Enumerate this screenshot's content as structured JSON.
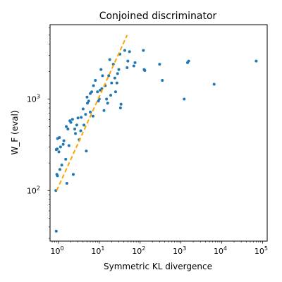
{
  "chart_data": {
    "type": "scatter",
    "title": "Conjoined discriminator",
    "xlabel": "Symmetric KL divergence",
    "ylabel": "W_F (eval)",
    "xscale": "log",
    "yscale": "log",
    "xlim": [
      0.62,
      130000
    ],
    "ylim": [
      28,
      6500
    ],
    "grid": false,
    "x_ticks": [
      {
        "value": 1,
        "base": "10",
        "exp": "0"
      },
      {
        "value": 10,
        "base": "10",
        "exp": "1"
      },
      {
        "value": 100,
        "base": "10",
        "exp": "2"
      },
      {
        "value": 1000,
        "base": "10",
        "exp": "3"
      },
      {
        "value": 10000,
        "base": "10",
        "exp": "4"
      },
      {
        "value": 100000,
        "base": "10",
        "exp": "5"
      }
    ],
    "y_ticks": [
      {
        "value": 100,
        "base": "10",
        "exp": "2"
      },
      {
        "value": 1000,
        "base": "10",
        "exp": "3"
      }
    ],
    "point_color": "#1f77b4",
    "points": [
      [
        0.86,
        100
      ],
      [
        0.88,
        36
      ],
      [
        0.91,
        150
      ],
      [
        0.94,
        145
      ],
      [
        0.88,
        280
      ],
      [
        0.93,
        285
      ],
      [
        0.95,
        370
      ],
      [
        1.02,
        265
      ],
      [
        1.05,
        380
      ],
      [
        1.08,
        170
      ],
      [
        1.12,
        300
      ],
      [
        1.2,
        190
      ],
      [
        1.3,
        320
      ],
      [
        1.35,
        350
      ],
      [
        1.5,
        220
      ],
      [
        1.55,
        500
      ],
      [
        1.6,
        120
      ],
      [
        1.7,
        470
      ],
      [
        1.8,
        310
      ],
      [
        1.9,
        580
      ],
      [
        2.0,
        555
      ],
      [
        2.2,
        600
      ],
      [
        2.3,
        150
      ],
      [
        2.5,
        470
      ],
      [
        2.6,
        420
      ],
      [
        2.8,
        520
      ],
      [
        3.0,
        620
      ],
      [
        3.2,
        360
      ],
      [
        3.5,
        450
      ],
      [
        3.6,
        630
      ],
      [
        4.0,
        780
      ],
      [
        4.2,
        520
      ],
      [
        4.6,
        680
      ],
      [
        4.8,
        270
      ],
      [
        5.0,
        1050
      ],
      [
        5.1,
        900
      ],
      [
        5.5,
        950
      ],
      [
        6.0,
        1150
      ],
      [
        6.0,
        720
      ],
      [
        6.5,
        1200
      ],
      [
        7.0,
        650
      ],
      [
        7.2,
        1400
      ],
      [
        8.0,
        1600
      ],
      [
        9.0,
        1200
      ],
      [
        9.5,
        950
      ],
      [
        10,
        1000
      ],
      [
        10.5,
        1250
      ],
      [
        11,
        2100
      ],
      [
        11.5,
        1300
      ],
      [
        12,
        1800
      ],
      [
        13,
        750
      ],
      [
        14,
        1400
      ],
      [
        15,
        1000
      ],
      [
        16,
        900
      ],
      [
        17,
        1800
      ],
      [
        18,
        2700
      ],
      [
        19,
        1100
      ],
      [
        20,
        1500
      ],
      [
        22,
        2400
      ],
      [
        24,
        1700
      ],
      [
        25,
        1200
      ],
      [
        27,
        1500
      ],
      [
        28,
        1900
      ],
      [
        30,
        2100
      ],
      [
        32,
        3100
      ],
      [
        33,
        800
      ],
      [
        34,
        880
      ],
      [
        42,
        3400
      ],
      [
        48,
        2200
      ],
      [
        50,
        2600
      ],
      [
        55,
        3300
      ],
      [
        70,
        2300
      ],
      [
        75,
        2500
      ],
      [
        120,
        3400
      ],
      [
        125,
        2100
      ],
      [
        130,
        2050
      ],
      [
        300,
        2400
      ],
      [
        350,
        1600
      ],
      [
        1200,
        1000
      ],
      [
        1450,
        2500
      ],
      [
        1550,
        2600
      ],
      [
        6500,
        1450
      ],
      [
        70000,
        2600
      ]
    ],
    "fit_line": {
      "style": "dashed",
      "color": "#ffa500",
      "x": [
        0.9,
        48
      ],
      "y": [
        100,
        5000
      ]
    }
  }
}
